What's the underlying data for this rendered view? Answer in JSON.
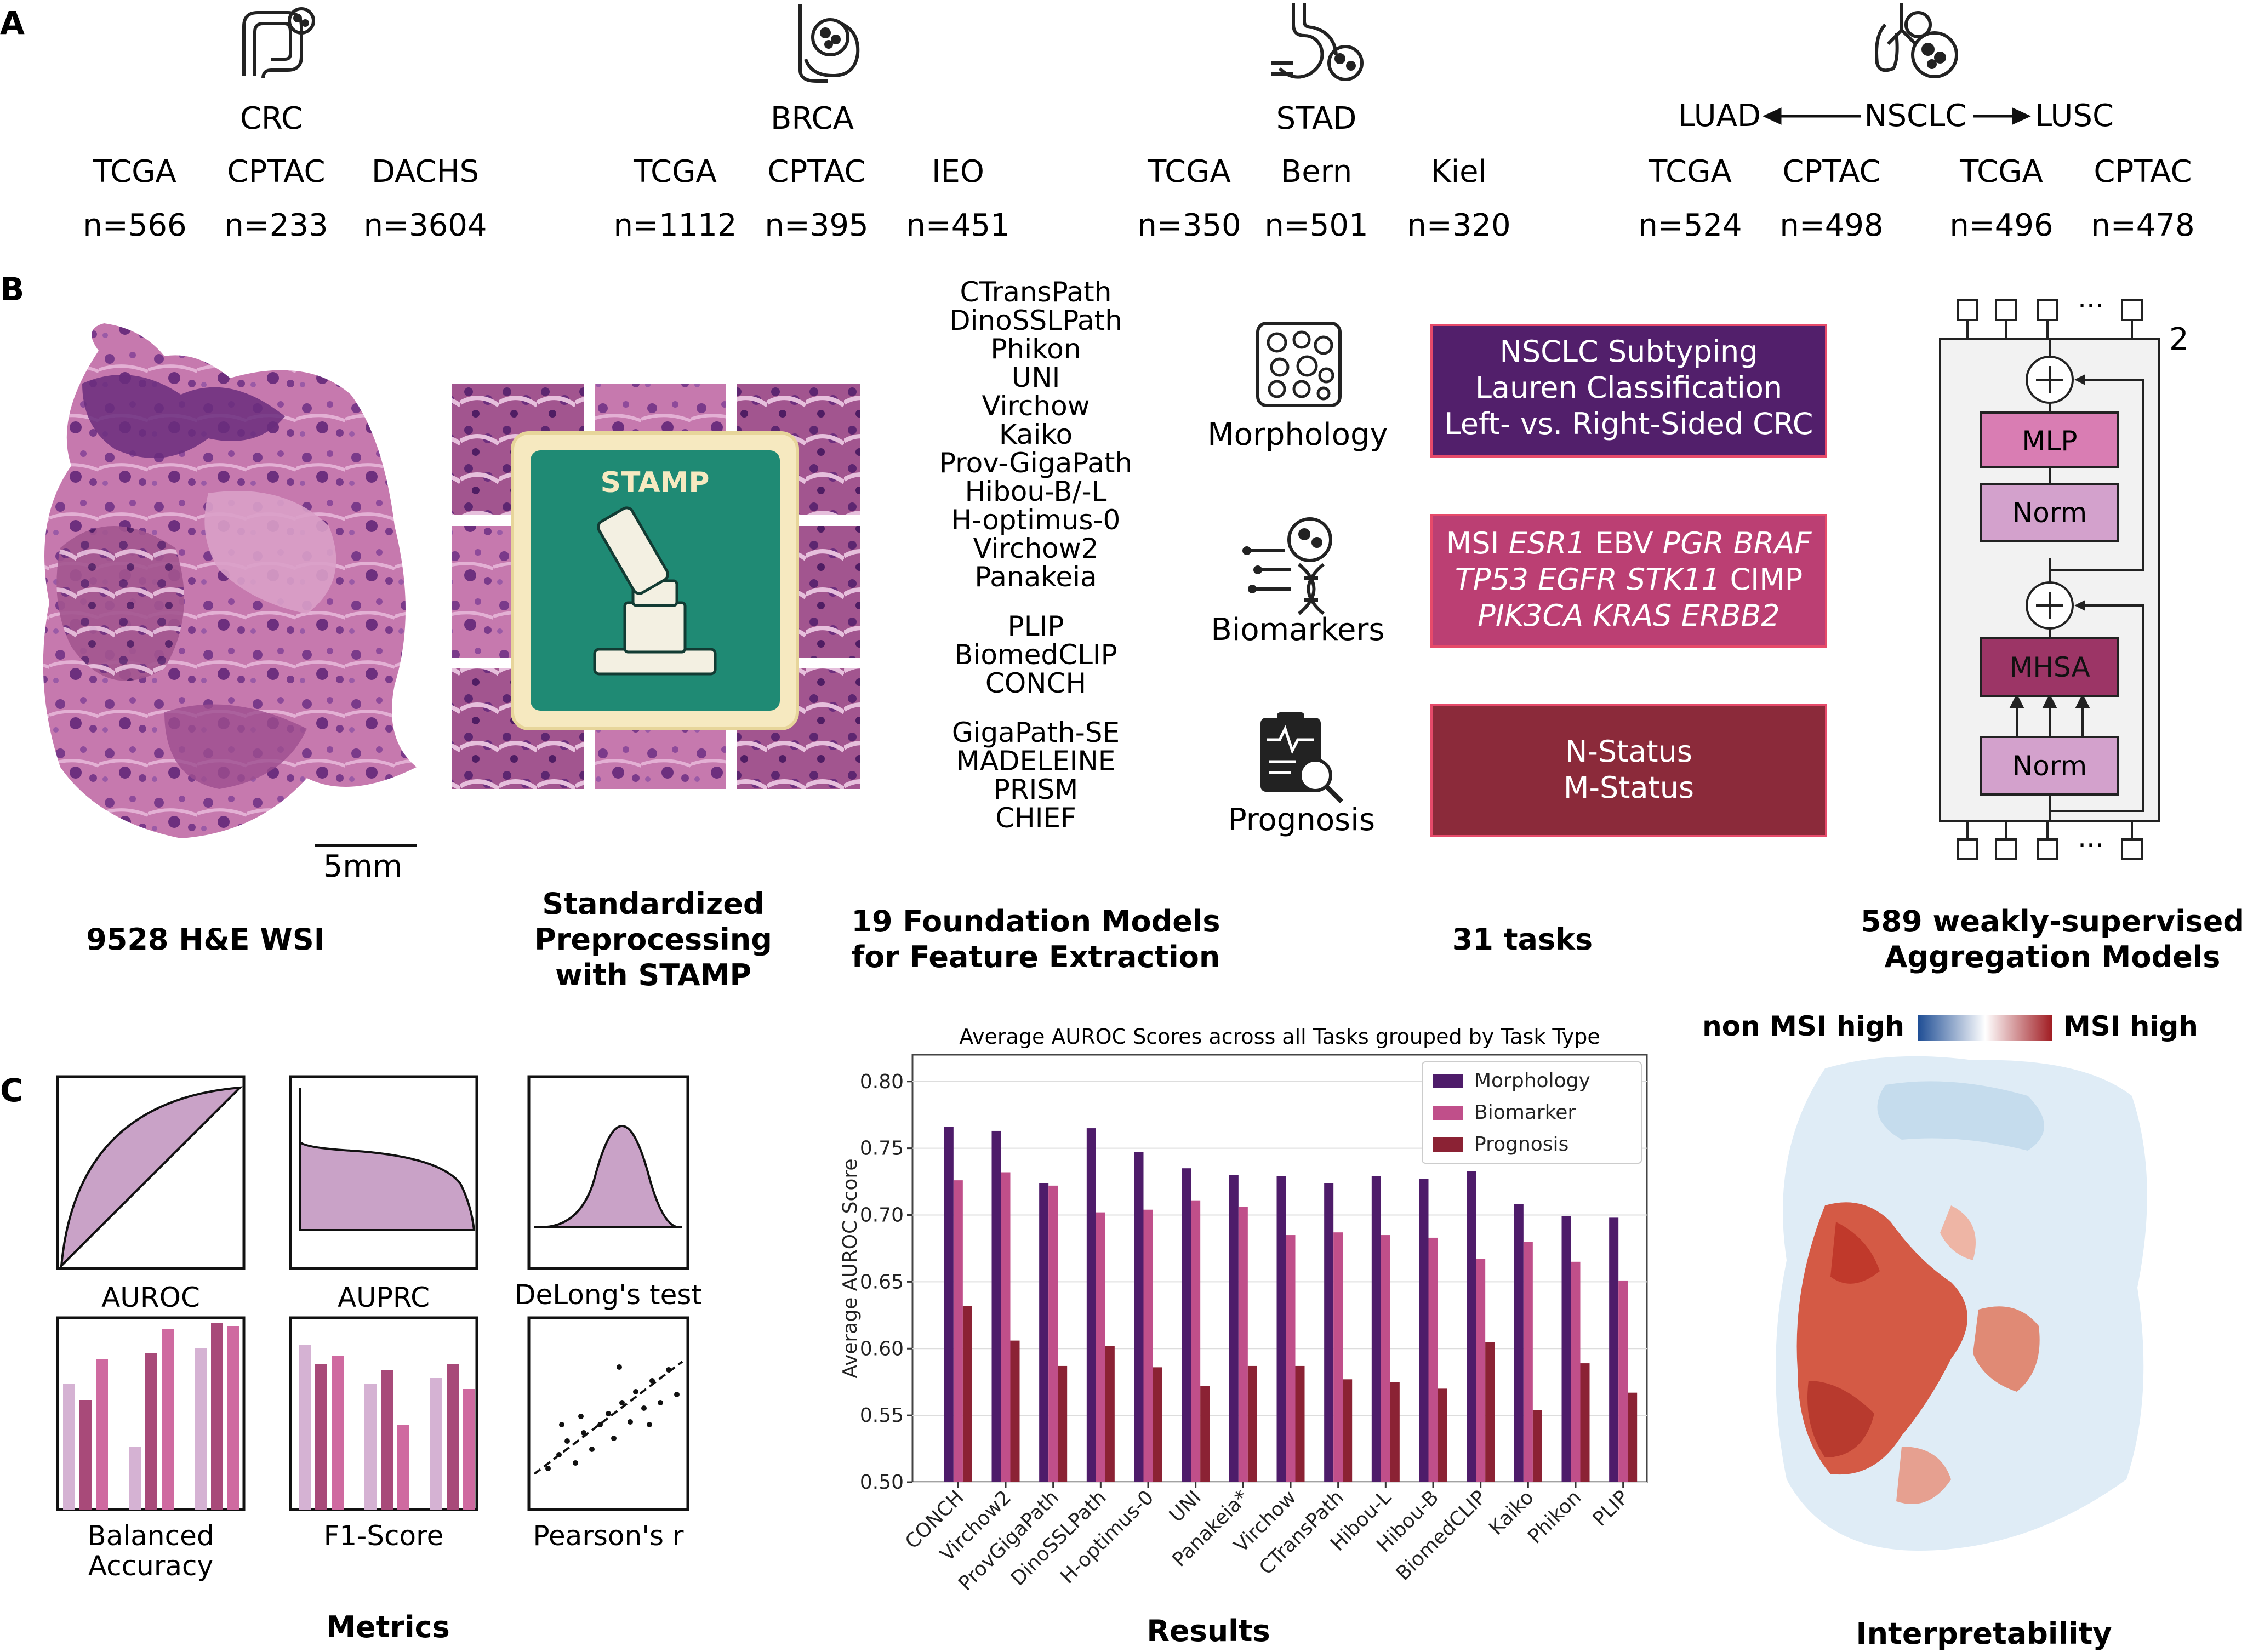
{
  "panels": {
    "a": "A",
    "b": "B",
    "c": "C"
  },
  "cohorts": [
    {
      "name": "CRC",
      "sites": [
        {
          "site": "TCGA",
          "n": "n=566"
        },
        {
          "site": "CPTAC",
          "n": "n=233"
        },
        {
          "site": "DACHS",
          "n": "n=3604"
        }
      ]
    },
    {
      "name": "BRCA",
      "sites": [
        {
          "site": "TCGA",
          "n": "n=1112"
        },
        {
          "site": "CPTAC",
          "n": "n=395"
        },
        {
          "site": "IEO",
          "n": "n=451"
        }
      ]
    },
    {
      "name": "STAD",
      "sites": [
        {
          "site": "TCGA",
          "n": "n=350"
        },
        {
          "site": "Bern",
          "n": "n=501"
        },
        {
          "site": "Kiel",
          "n": "n=320"
        }
      ]
    },
    {
      "name": "NSCLC",
      "left": "LUAD",
      "right": "LUSC",
      "sites": [
        {
          "site": "TCGA",
          "n": "n=524"
        },
        {
          "site": "CPTAC",
          "n": "n=498"
        },
        {
          "site": "TCGA",
          "n": "n=496"
        },
        {
          "site": "CPTAC",
          "n": "n=478"
        }
      ]
    }
  ],
  "icons": [
    "colon-icon",
    "breast-icon",
    "stomach-icon",
    "lung-icon",
    "morphology-tissue-icon",
    "dna-icon",
    "clipboard-icon"
  ],
  "panel_b": {
    "scale_bar": "5mm",
    "wsi_caption": "9528 H&E WSI",
    "stamp_label": "STAMP",
    "preproc_caption": [
      "Standardized",
      "Preprocessing",
      "with STAMP"
    ],
    "fm_groups": [
      [
        "CTransPath",
        "DinoSSLPath",
        "Phikon",
        "UNI",
        "Virchow",
        "Kaiko",
        "Prov-GigaPath",
        "Hibou-B/-L",
        "H-optimus-0",
        "Virchow2",
        "Panakeia"
      ],
      [
        "PLIP",
        "BiomedCLIP",
        "CONCH"
      ],
      [
        "GigaPath-SE",
        "MADELEINE",
        "PRISM",
        "CHIEF"
      ]
    ],
    "fm_caption": [
      "19 Foundation Models",
      "for Feature Extraction"
    ],
    "task_types": [
      "Morphology",
      "Biomarkers",
      "Prognosis"
    ],
    "morphology_tasks": [
      "NSCLC Subtyping",
      "Lauren Classification",
      "Left- vs. Right-Sided CRC"
    ],
    "biomarker_tasks": [
      [
        [
          "MSI",
          false
        ],
        [
          "ESR1",
          true
        ],
        [
          "EBV",
          false
        ],
        [
          "PGR",
          true
        ],
        [
          "BRAF",
          true
        ]
      ],
      [
        [
          "TP53",
          true
        ],
        [
          "EGFR",
          true
        ],
        [
          "STK11",
          true
        ],
        [
          "CIMP",
          false
        ]
      ],
      [
        [
          "PIK3CA",
          true
        ],
        [
          "KRAS",
          true
        ],
        [
          "ERBB2",
          true
        ]
      ]
    ],
    "prognosis_tasks": [
      "N-Status",
      "M-Status"
    ],
    "tasks_caption": "31 tasks",
    "arch": {
      "mlp": "MLP",
      "norm": "Norm",
      "mhsa": "MHSA",
      "repeat": "2",
      "ellipsis": "···"
    },
    "agg_caption": [
      "589 weakly-supervised",
      "Aggregation Models"
    ],
    "colors": {
      "morphology_box": "#521f6b",
      "biomarker_box": "#bb3f73",
      "prognosis_box": "#8b2a3a"
    }
  },
  "panel_c": {
    "metrics": [
      "AUROC",
      "AUPRC",
      "DeLong's test",
      "Balanced Accuracy",
      "F1-Score",
      "Pearson's r"
    ],
    "metrics_caption": "Metrics",
    "results_caption": "Results",
    "interp_caption": "Interpretability",
    "colorbar_left": "non MSI high",
    "colorbar_right": "MSI high"
  },
  "chart_data": {
    "type": "bar",
    "title": "Average AUROC Scores across all Tasks grouped by Task Type",
    "xlabel": "",
    "ylabel": "Average AUROC Score",
    "ylim": [
      0.5,
      0.82
    ],
    "yticks": [
      "0.50",
      "0.55",
      "0.60",
      "0.65",
      "0.70",
      "0.75",
      "0.80"
    ],
    "grid": true,
    "legend": "top-right",
    "categories": [
      "CONCH",
      "Virchow2",
      "ProvGigaPath",
      "DinoSSLPath",
      "H-optimus-0",
      "UNI",
      "Panakeia*",
      "Virchow",
      "CTransPath",
      "Hibou-L",
      "Hibou-B",
      "BiomedCLIP",
      "Kaiko",
      "Phikon",
      "PLIP"
    ],
    "series": [
      {
        "name": "Morphology",
        "color": "#4e1c6a",
        "values": [
          0.766,
          0.763,
          0.724,
          0.765,
          0.747,
          0.735,
          0.73,
          0.729,
          0.724,
          0.729,
          0.727,
          0.733,
          0.708,
          0.699,
          0.698
        ]
      },
      {
        "name": "Biomarker",
        "color": "#c04f8a",
        "values": [
          0.726,
          0.732,
          0.722,
          0.702,
          0.704,
          0.711,
          0.706,
          0.685,
          0.687,
          0.685,
          0.683,
          0.667,
          0.68,
          0.665,
          0.651
        ]
      },
      {
        "name": "Prognosis",
        "color": "#8b2234",
        "values": [
          0.632,
          0.606,
          0.587,
          0.602,
          0.586,
          0.572,
          0.587,
          0.587,
          0.577,
          0.575,
          0.57,
          0.605,
          0.554,
          0.589,
          0.567
        ]
      }
    ]
  }
}
